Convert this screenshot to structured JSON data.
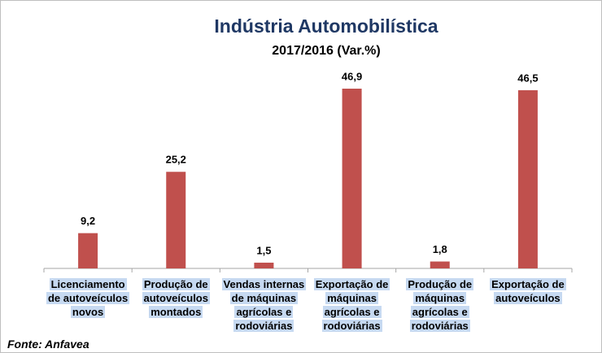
{
  "chart_data": {
    "type": "bar",
    "title": "Indústria Automobilística",
    "subtitle": "2017/2016 (Var.%)",
    "categories": [
      "Licenciamento de autoveículos novos",
      "Produção de autoveículos montados",
      "Vendas internas de máquinas agrícolas e rodoviárias",
      "Exportação de máquinas agrícolas e rodoviárias",
      "Produção de máquinas agrícolas e rodoviárias",
      "Exportação de autoveículos"
    ],
    "values": [
      9.2,
      25.2,
      1.5,
      46.9,
      1.8,
      46.5
    ],
    "value_labels": [
      "9,2",
      "25,2",
      "1,5",
      "46,9",
      "1,8",
      "46,5"
    ],
    "color": "#c0504d",
    "source": "Fonte: Anfavea"
  }
}
